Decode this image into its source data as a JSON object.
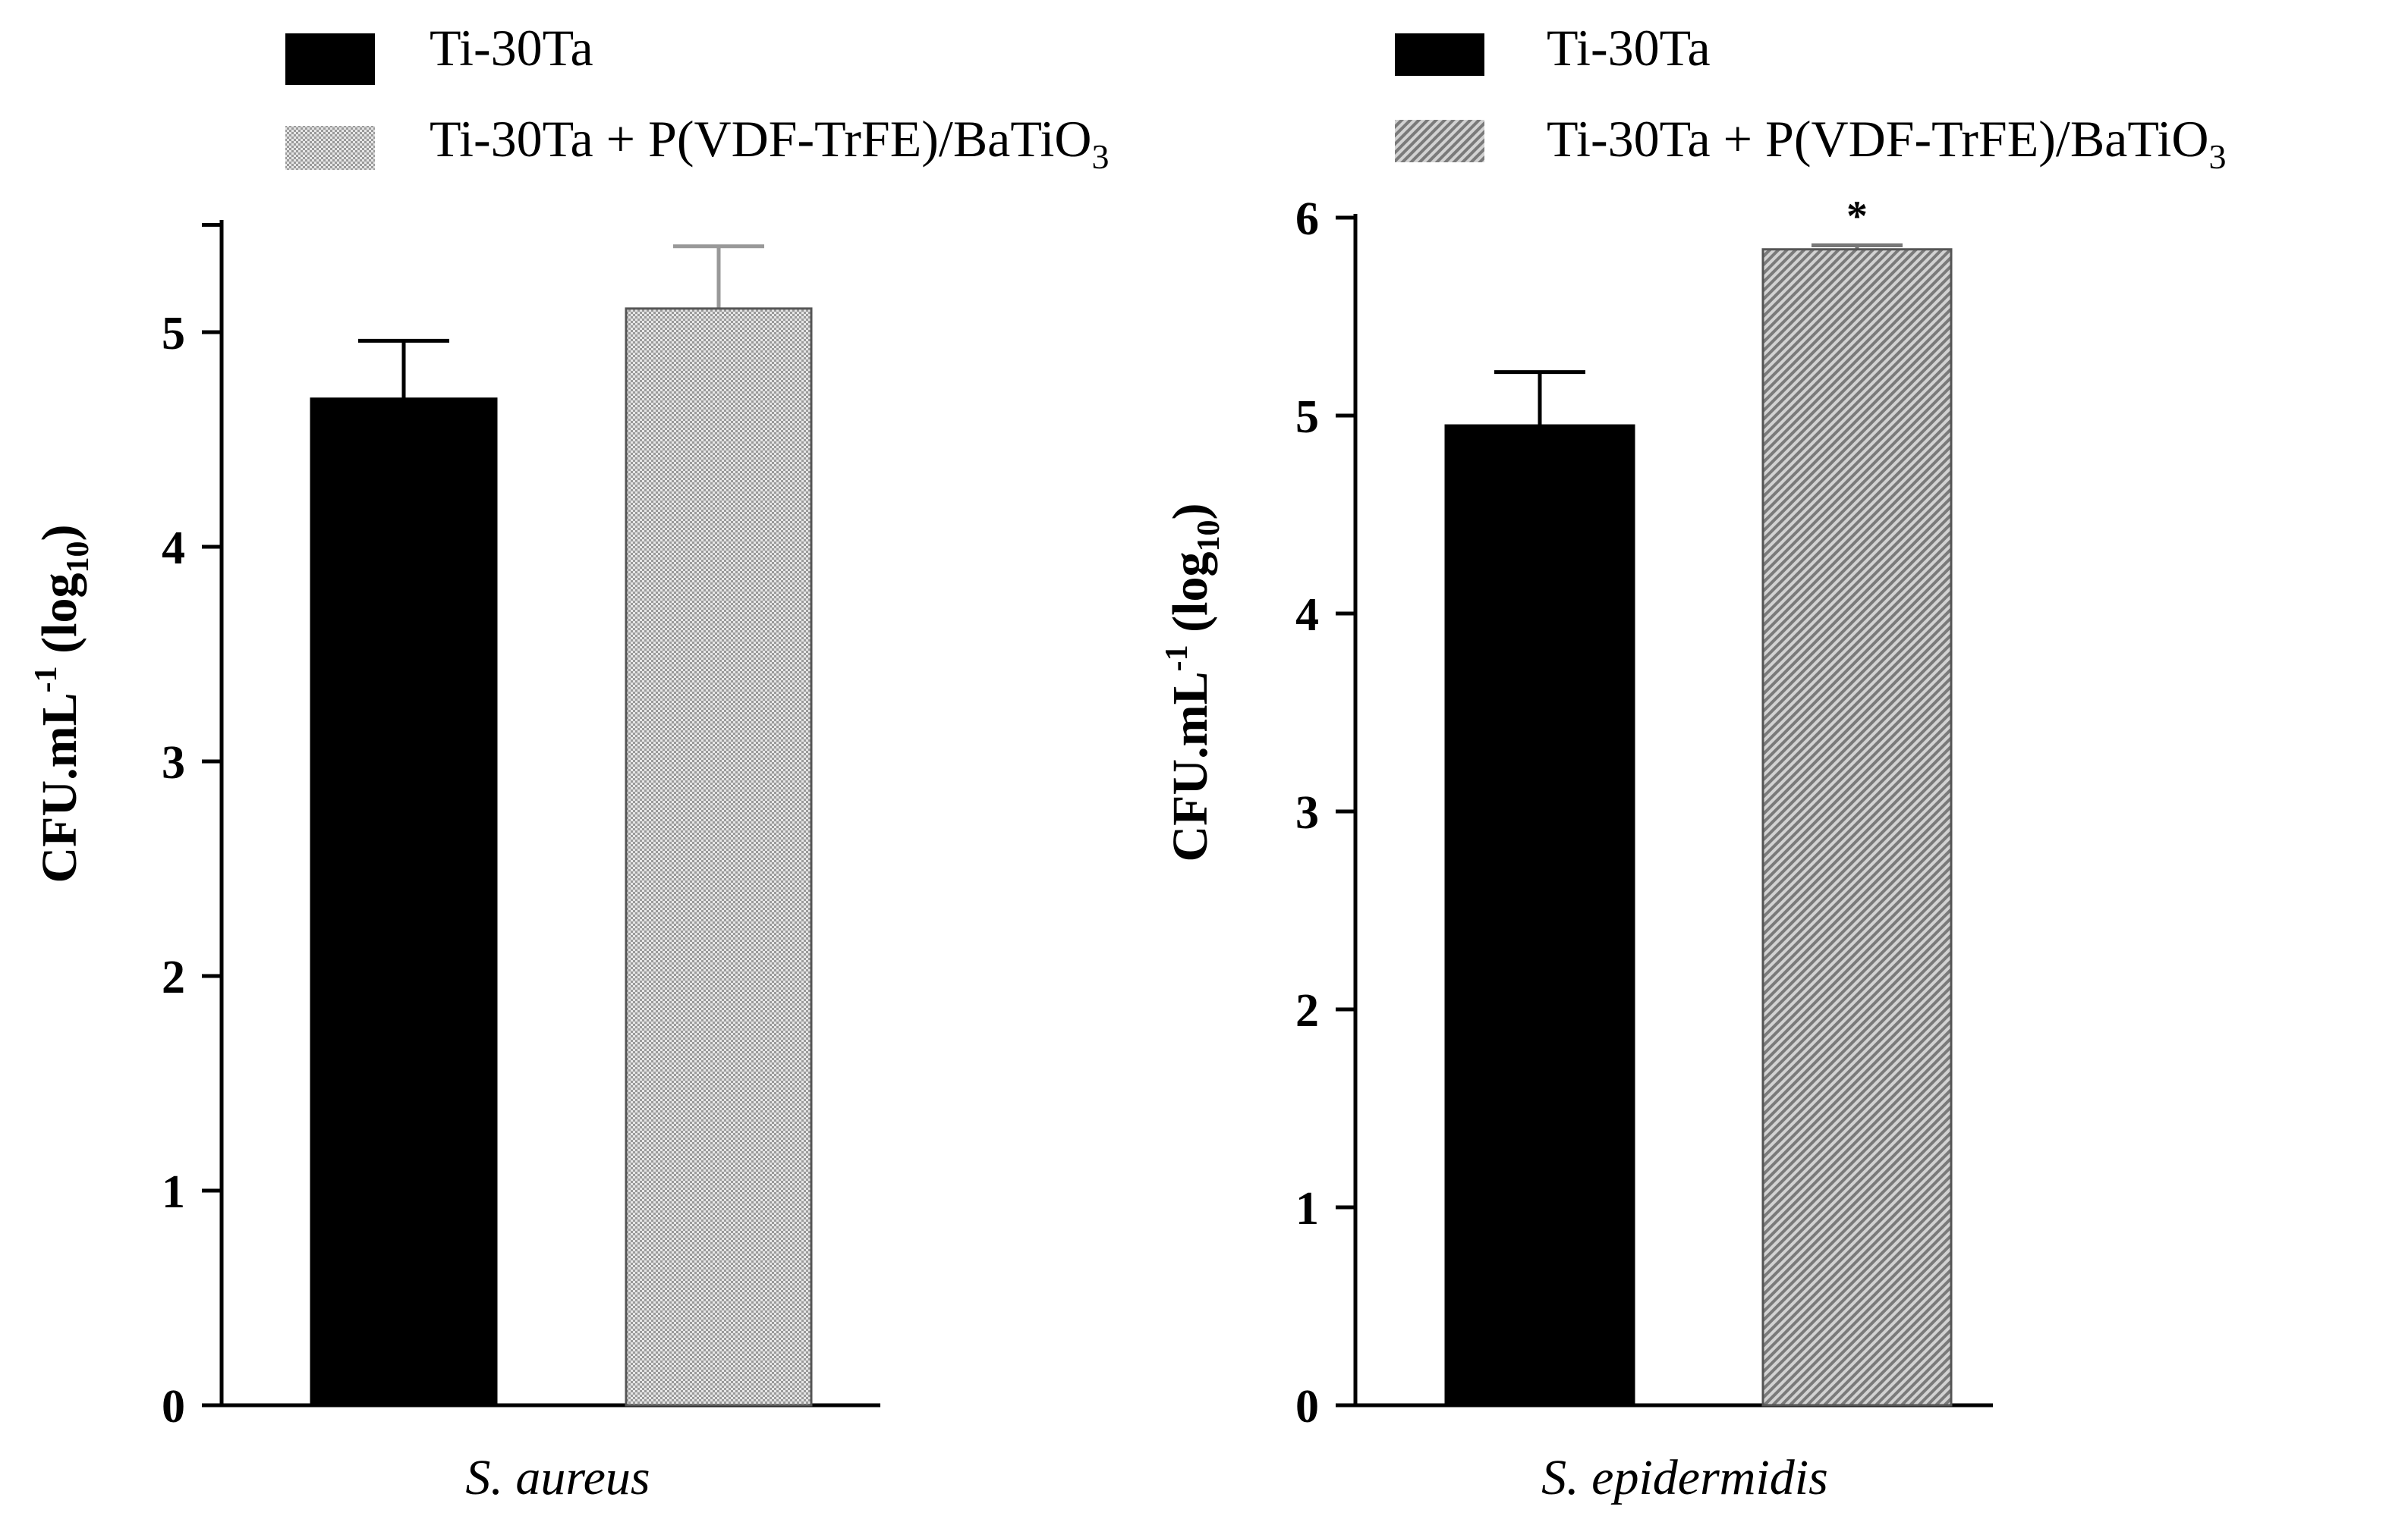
{
  "chart_data": [
    {
      "type": "bar",
      "legend": {
        "placement": "top",
        "items": [
          {
            "label": "Ti-30Ta",
            "fill": "solid-black"
          },
          {
            "label": "Ti-30Ta + P(VDF-TrFE)/BaTiO",
            "subscript": "3",
            "fill": "dotted-gray"
          }
        ]
      },
      "ylabel": {
        "prefix": "CFU.mL",
        "superscript": "-1",
        "middle": " (log",
        "subscript": "10",
        "suffix": ")"
      },
      "xlabel": "S. aureus",
      "ylim": [
        0,
        5.5
      ],
      "yticks": [
        "0",
        "1",
        "2",
        "3",
        "4",
        "5"
      ],
      "series": [
        {
          "name": "Ti-30Ta",
          "value": 4.69,
          "error": 0.27,
          "color": "#000000"
        },
        {
          "name": "Ti-30Ta + P(VDF-TrFE)/BaTiO3",
          "value": 5.11,
          "error": 0.29,
          "color": "#c8c8c8"
        }
      ],
      "annotations": []
    },
    {
      "type": "bar",
      "legend": {
        "placement": "top",
        "items": [
          {
            "label": "Ti-30Ta",
            "fill": "solid-black"
          },
          {
            "label": "Ti-30Ta + P(VDF-TrFE)/BaTiO",
            "subscript": "3",
            "fill": "hatched-gray"
          }
        ]
      },
      "ylabel": {
        "prefix": "CFU.mL",
        "superscript": "-1",
        "middle": " (log",
        "subscript": "10",
        "suffix": ")"
      },
      "xlabel": "S. epidermidis",
      "ylim": [
        0,
        6
      ],
      "yticks": [
        "0",
        "1",
        "2",
        "3",
        "4",
        "5",
        "6"
      ],
      "series": [
        {
          "name": "Ti-30Ta",
          "value": 4.95,
          "error": 0.27,
          "color": "#000000"
        },
        {
          "name": "Ti-30Ta + P(VDF-TrFE)/BaTiO3",
          "value": 5.84,
          "error": 0.02,
          "color": "#a0a0a0"
        }
      ],
      "annotations": [
        {
          "text": "*",
          "series": 1
        }
      ]
    }
  ]
}
